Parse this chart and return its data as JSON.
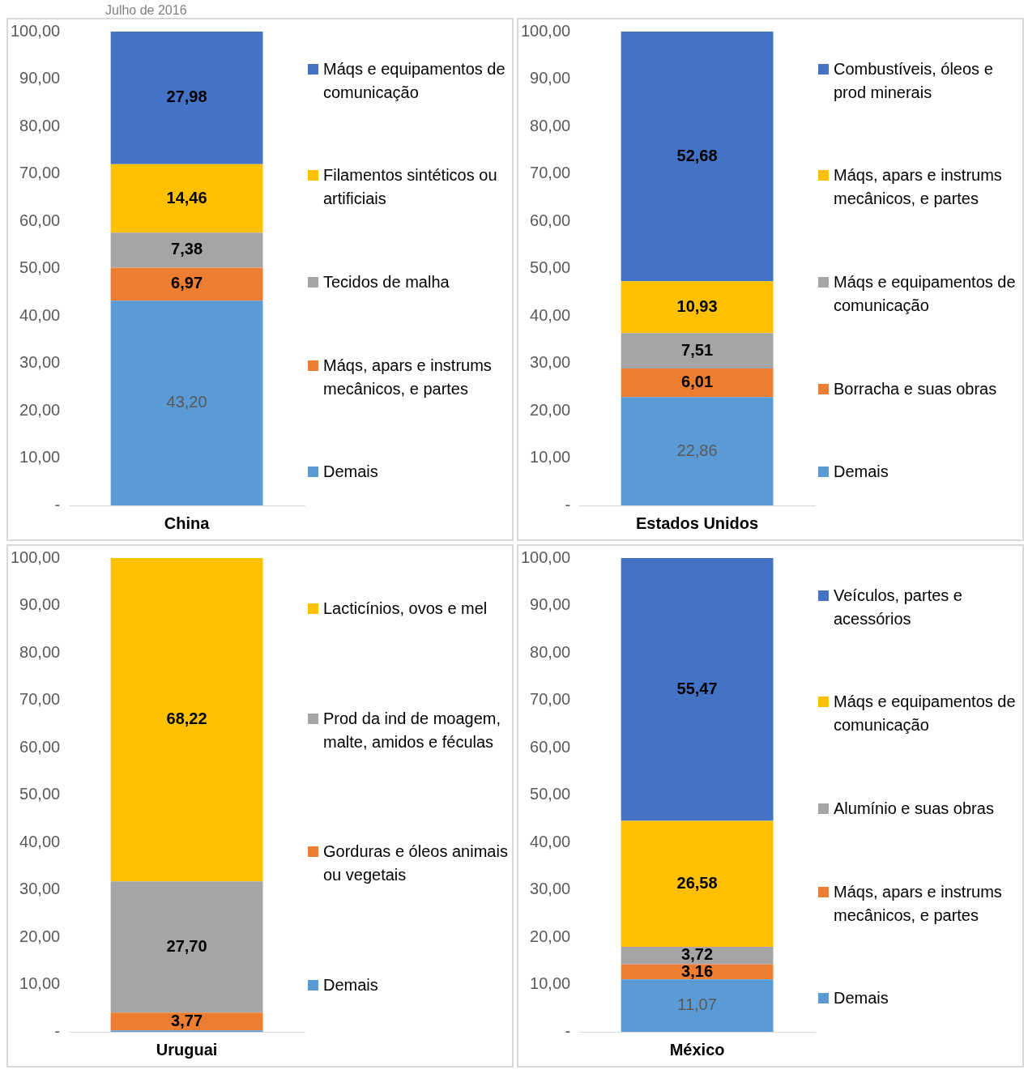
{
  "chart_data": [
    {
      "type": "bar",
      "subtitle": "Julho de 2016",
      "categories": [
        "China"
      ],
      "stacked": true,
      "ylim": [
        0,
        100
      ],
      "yticks": [
        {
          "value": 0,
          "label": "-"
        },
        {
          "value": 10,
          "label": "10,00"
        },
        {
          "value": 20,
          "label": "20,00"
        },
        {
          "value": 30,
          "label": "30,00"
        },
        {
          "value": 40,
          "label": "40,00"
        },
        {
          "value": 50,
          "label": "50,00"
        },
        {
          "value": 60,
          "label": "60,00"
        },
        {
          "value": 70,
          "label": "70,00"
        },
        {
          "value": 80,
          "label": "80,00"
        },
        {
          "value": 90,
          "label": "90,00"
        },
        {
          "value": 100,
          "label": "100,00"
        }
      ],
      "grid": false,
      "legend": "right",
      "series": [
        {
          "name": "Demais",
          "color": "#5b9bd5",
          "values": [
            43.2
          ],
          "value_labels": [
            "43,20"
          ]
        },
        {
          "name": "Máqs, apars e instrums mecânicos, e partes",
          "color": "#ed7d31",
          "values": [
            6.97
          ],
          "value_labels": [
            "6,97"
          ]
        },
        {
          "name": "Tecidos de malha",
          "color": "#a5a5a5",
          "values": [
            7.38
          ],
          "value_labels": [
            "7,38"
          ]
        },
        {
          "name": "Filamentos sintéticos ou artificiais",
          "color": "#ffc000",
          "values": [
            14.46
          ],
          "value_labels": [
            "14,46"
          ]
        },
        {
          "name": "Máqs e equipamentos de comunicação",
          "color": "#4472c4",
          "values": [
            27.98
          ],
          "value_labels": [
            "27,98"
          ]
        }
      ]
    },
    {
      "type": "bar",
      "categories": [
        "Estados Unidos"
      ],
      "stacked": true,
      "ylim": [
        0,
        100
      ],
      "yticks": [
        {
          "value": 0,
          "label": "-"
        },
        {
          "value": 10,
          "label": "10,00"
        },
        {
          "value": 20,
          "label": "20,00"
        },
        {
          "value": 30,
          "label": "30,00"
        },
        {
          "value": 40,
          "label": "40,00"
        },
        {
          "value": 50,
          "label": "50,00"
        },
        {
          "value": 60,
          "label": "60,00"
        },
        {
          "value": 70,
          "label": "70,00"
        },
        {
          "value": 80,
          "label": "80,00"
        },
        {
          "value": 90,
          "label": "90,00"
        },
        {
          "value": 100,
          "label": "100,00"
        }
      ],
      "grid": false,
      "legend": "right",
      "series": [
        {
          "name": "Demais",
          "color": "#5b9bd5",
          "values": [
            22.86
          ],
          "value_labels": [
            "22,86"
          ]
        },
        {
          "name": "Borracha e suas obras",
          "color": "#ed7d31",
          "values": [
            6.01
          ],
          "value_labels": [
            "6,01"
          ]
        },
        {
          "name": "Máqs e equipamentos de comunicação",
          "color": "#a5a5a5",
          "values": [
            7.51
          ],
          "value_labels": [
            "7,51"
          ]
        },
        {
          "name": "Máqs, apars e instrums mecânicos, e partes",
          "color": "#ffc000",
          "values": [
            10.93
          ],
          "value_labels": [
            "10,93"
          ]
        },
        {
          "name": "Combustíveis, óleos e prod minerais",
          "color": "#4472c4",
          "values": [
            52.68
          ],
          "value_labels": [
            "52,68"
          ]
        }
      ]
    },
    {
      "type": "bar",
      "categories": [
        "Uruguai"
      ],
      "stacked": true,
      "ylim": [
        0,
        100
      ],
      "yticks": [
        {
          "value": 0,
          "label": "-"
        },
        {
          "value": 10,
          "label": "10,00"
        },
        {
          "value": 20,
          "label": "20,00"
        },
        {
          "value": 30,
          "label": "30,00"
        },
        {
          "value": 40,
          "label": "40,00"
        },
        {
          "value": 50,
          "label": "50,00"
        },
        {
          "value": 60,
          "label": "60,00"
        },
        {
          "value": 70,
          "label": "70,00"
        },
        {
          "value": 80,
          "label": "80,00"
        },
        {
          "value": 90,
          "label": "90,00"
        },
        {
          "value": 100,
          "label": "100,00"
        }
      ],
      "grid": false,
      "legend": "right",
      "series": [
        {
          "name": "Demais",
          "color": "#5b9bd5",
          "values": [
            0.3
          ],
          "value_labels": [
            null
          ]
        },
        {
          "name": "Gorduras e óleos animais ou vegetais",
          "color": "#ed7d31",
          "values": [
            3.77
          ],
          "value_labels": [
            "3,77"
          ]
        },
        {
          "name": "Prod da ind de moagem, malte, amidos e féculas",
          "color": "#a5a5a5",
          "values": [
            27.7
          ],
          "value_labels": [
            "27,70"
          ]
        },
        {
          "name": "Lacticínios, ovos e mel",
          "color": "#ffc000",
          "values": [
            68.22
          ],
          "value_labels": [
            "68,22"
          ]
        }
      ]
    },
    {
      "type": "bar",
      "categories": [
        "México"
      ],
      "stacked": true,
      "ylim": [
        0,
        100
      ],
      "yticks": [
        {
          "value": 0,
          "label": "-"
        },
        {
          "value": 10,
          "label": "10,00"
        },
        {
          "value": 20,
          "label": "20,00"
        },
        {
          "value": 30,
          "label": "30,00"
        },
        {
          "value": 40,
          "label": "40,00"
        },
        {
          "value": 50,
          "label": "50,00"
        },
        {
          "value": 60,
          "label": "60,00"
        },
        {
          "value": 70,
          "label": "70,00"
        },
        {
          "value": 80,
          "label": "80,00"
        },
        {
          "value": 90,
          "label": "90,00"
        },
        {
          "value": 100,
          "label": "100,00"
        }
      ],
      "grid": false,
      "legend": "right",
      "series": [
        {
          "name": "Demais",
          "color": "#5b9bd5",
          "values": [
            11.07
          ],
          "value_labels": [
            "11,07"
          ]
        },
        {
          "name": "Máqs, apars e instrums mecânicos, e partes",
          "color": "#ed7d31",
          "values": [
            3.16
          ],
          "value_labels": [
            "3,16"
          ]
        },
        {
          "name": "Alumínio e suas obras",
          "color": "#a5a5a5",
          "values": [
            3.72
          ],
          "value_labels": [
            "3,72"
          ]
        },
        {
          "name": "Máqs e equipamentos de comunicação",
          "color": "#ffc000",
          "values": [
            26.58
          ],
          "value_labels": [
            "26,58"
          ]
        },
        {
          "name": "Veículos, partes e acessórios",
          "color": "#4472c4",
          "values": [
            55.47
          ],
          "value_labels": [
            "55,47"
          ]
        }
      ]
    }
  ]
}
